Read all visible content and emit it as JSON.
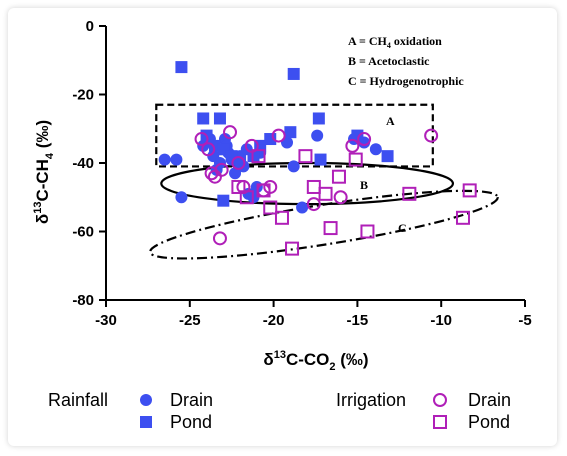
{
  "chart_data": {
    "type": "scatter",
    "title": "",
    "xlabel_parts": [
      "δ",
      "13",
      "C-CO",
      "2",
      " (‰)"
    ],
    "ylabel_parts": [
      "δ",
      "13",
      "C-CH",
      "4",
      " (‰)"
    ],
    "xlim": [
      -30,
      -5
    ],
    "ylim": [
      -80,
      0
    ],
    "xticks": [
      "-30",
      "-25",
      "-20",
      "-15",
      "-10",
      "-5"
    ],
    "yticks": [
      "0",
      "-20",
      "-40",
      "-60",
      "-80"
    ],
    "annotations": {
      "key_lines": [
        [
          "A = CH",
          "4",
          " oxidation"
        ],
        [
          "B = Acetoclastic",
          "",
          ""
        ],
        [
          "C =  Hydrogenotrophic",
          "",
          ""
        ]
      ],
      "region_labels": [
        "A",
        "B",
        "C"
      ]
    },
    "legend": {
      "groups": [
        "Rainfall",
        "Irrigation"
      ],
      "entries": [
        "Drain",
        "Pond",
        "Drain",
        "Pond"
      ]
    },
    "colors": {
      "rainfall": "#3d4ff0",
      "irrigation": "#b01fb8"
    },
    "series": [
      {
        "name": "Rainfall Drain",
        "marker": "filled-circle",
        "color": "#3d4ff0",
        "points": [
          [
            -26.5,
            -39
          ],
          [
            -25.8,
            -39
          ],
          [
            -25.5,
            -50
          ],
          [
            -24.2,
            -35
          ],
          [
            -23.8,
            -33
          ],
          [
            -23.6,
            -38
          ],
          [
            -23.2,
            -40
          ],
          [
            -22.9,
            -33
          ],
          [
            -22.7,
            -37
          ],
          [
            -22.5,
            -39
          ],
          [
            -22.3,
            -43
          ],
          [
            -22.0,
            -38
          ],
          [
            -21.8,
            -41
          ],
          [
            -21.6,
            -36
          ],
          [
            -21.5,
            -49
          ],
          [
            -21.2,
            -50
          ],
          [
            -21.0,
            -47
          ],
          [
            -20.8,
            -37
          ],
          [
            -19.2,
            -34
          ],
          [
            -18.8,
            -41
          ],
          [
            -18.3,
            -53
          ],
          [
            -17.4,
            -32
          ],
          [
            -15.2,
            -33
          ],
          [
            -14.6,
            -34
          ],
          [
            -13.9,
            -36
          ],
          [
            -22.8,
            -35
          ],
          [
            -23.4,
            -42
          ]
        ]
      },
      {
        "name": "Rainfall Pond",
        "marker": "filled-square",
        "color": "#3d4ff0",
        "points": [
          [
            -25.5,
            -12
          ],
          [
            -18.8,
            -14
          ],
          [
            -24.2,
            -27
          ],
          [
            -23.2,
            -27
          ],
          [
            -24.0,
            -32
          ],
          [
            -23.5,
            -35
          ],
          [
            -23.0,
            -36
          ],
          [
            -22.5,
            -38
          ],
          [
            -22.0,
            -40
          ],
          [
            -21.2,
            -38
          ],
          [
            -20.8,
            -35
          ],
          [
            -20.2,
            -33
          ],
          [
            -19.0,
            -31
          ],
          [
            -17.3,
            -27
          ],
          [
            -15.0,
            -32
          ],
          [
            -13.2,
            -38
          ],
          [
            -17.2,
            -39
          ],
          [
            -23.0,
            -51
          ]
        ]
      },
      {
        "name": "Irrigation Drain",
        "marker": "open-circle",
        "color": "#b01fb8",
        "points": [
          [
            -24.3,
            -33
          ],
          [
            -23.9,
            -36
          ],
          [
            -23.7,
            -43
          ],
          [
            -23.5,
            -44
          ],
          [
            -23.1,
            -42
          ],
          [
            -22.6,
            -31
          ],
          [
            -22.1,
            -40
          ],
          [
            -21.8,
            -47
          ],
          [
            -21.3,
            -35
          ],
          [
            -20.6,
            -48
          ],
          [
            -20.2,
            -47
          ],
          [
            -19.7,
            -32
          ],
          [
            -17.6,
            -52
          ],
          [
            -16.0,
            -50
          ],
          [
            -15.3,
            -35
          ],
          [
            -14.6,
            -33
          ],
          [
            -10.6,
            -32
          ],
          [
            -23.2,
            -62
          ]
        ]
      },
      {
        "name": "Irrigation Pond",
        "marker": "open-square",
        "color": "#b01fb8",
        "points": [
          [
            -22.1,
            -47
          ],
          [
            -21.6,
            -50
          ],
          [
            -20.9,
            -38
          ],
          [
            -20.6,
            -48
          ],
          [
            -20.2,
            -53
          ],
          [
            -19.5,
            -56
          ],
          [
            -18.9,
            -65
          ],
          [
            -18.1,
            -38
          ],
          [
            -17.6,
            -47
          ],
          [
            -16.9,
            -49
          ],
          [
            -16.6,
            -59
          ],
          [
            -16.1,
            -44
          ],
          [
            -15.1,
            -39
          ],
          [
            -14.4,
            -60
          ],
          [
            -11.9,
            -49
          ],
          [
            -8.7,
            -56
          ],
          [
            -8.3,
            -48
          ]
        ]
      }
    ],
    "regions": [
      {
        "label": "A",
        "shape": "dashed-rectangle",
        "x": [
          -27,
          -10.5
        ],
        "y": [
          -41,
          -23
        ]
      },
      {
        "label": "B",
        "shape": "solid-ellipse",
        "center": [
          -18,
          -46
        ],
        "rx": 8.7,
        "ry": 6
      },
      {
        "label": "C",
        "shape": "dash-dot-ellipse",
        "center": [
          -17,
          -58
        ],
        "rx": 10.5,
        "ry": 5.8,
        "rotate_deg": -9
      }
    ]
  }
}
